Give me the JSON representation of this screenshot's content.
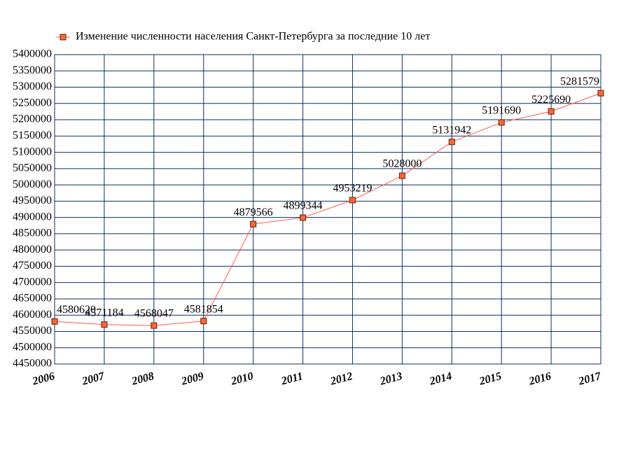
{
  "chart_data": {
    "type": "line",
    "title": "Изменение численности населения Санкт-Петербурга за последние 10 лет",
    "x": [
      2006,
      2007,
      2008,
      2009,
      2010,
      2011,
      2012,
      2013,
      2014,
      2015,
      2016,
      2017
    ],
    "xlim": [
      2006,
      2017
    ],
    "xticks": [
      2006,
      2007,
      2008,
      2009,
      2010,
      2011,
      2012,
      2013,
      2014,
      2015,
      2016,
      2017
    ],
    "series": [
      {
        "name": "Изменение численности населения Санкт-Петербурга за последние 10 лет",
        "color": "#ff5a4a",
        "marker_color": "#ff6633",
        "values": [
          4580620,
          4571184,
          4568047,
          4581854,
          4879566,
          4899344,
          4953219,
          5028000,
          5131942,
          5191690,
          5225690,
          5281579
        ]
      }
    ],
    "ylim": [
      4450000,
      5400000
    ],
    "yticks": [
      4450000,
      4500000,
      4550000,
      4600000,
      4650000,
      4700000,
      4750000,
      4800000,
      4850000,
      4900000,
      4950000,
      5000000,
      5050000,
      5100000,
      5150000,
      5200000,
      5250000,
      5300000,
      5350000,
      5400000
    ],
    "grid": true
  }
}
